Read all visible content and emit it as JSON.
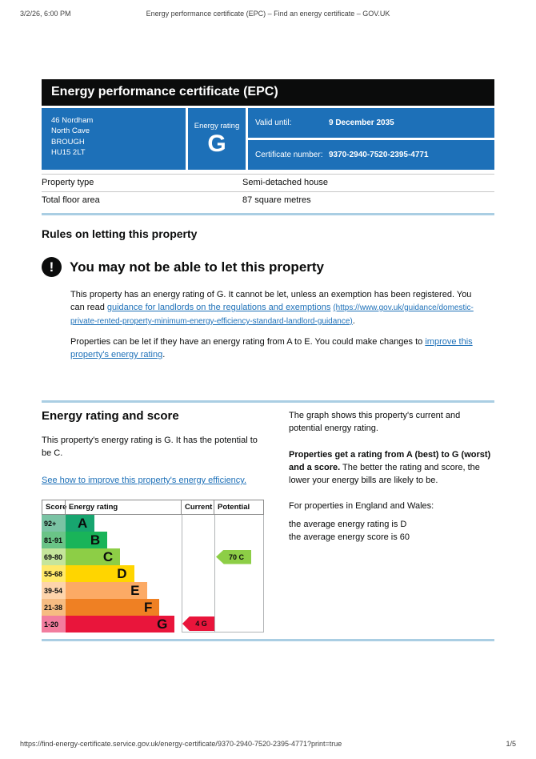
{
  "browser_chrome": {
    "datetime": "3/2/26, 6:00 PM",
    "page_title": "Energy performance certificate (EPC) – Find an energy certificate – GOV.UK",
    "footer_url": "https://find-energy-certificate.service.gov.uk/energy-certificate/9370-2940-7520-2395-4771?print=true",
    "page_number": "1/5"
  },
  "certificate": {
    "title": "Energy performance certificate (EPC)",
    "address_lines": [
      "46 Nordham",
      "North Cave",
      "BROUGH",
      "HU15 2LT"
    ],
    "energy_rating_label": "Energy rating",
    "energy_rating": "G",
    "valid_until_label": "Valid until:",
    "valid_until": "9 December 2035",
    "certificate_number_label": "Certificate number:",
    "certificate_number": "9370-2940-7520-2395-4771",
    "property": [
      {
        "label": "Property type",
        "value": "Semi-detached house"
      },
      {
        "label": "Total floor area",
        "value": "87 square metres"
      }
    ]
  },
  "rules_section": {
    "heading": "Rules on letting this property",
    "warning_icon": "!",
    "warning_heading": "You may not be able to let this property",
    "paragraph1_before": "This property has an energy rating of G. It cannot be let, unless an exemption has been registered. You can read ",
    "paragraph1_link": "guidance for landlords on the regulations and exemptions",
    "paragraph1_link_url_text": "(https://www.gov.uk/guidance/domestic-private-rented-property-minimum-energy-efficiency-standard-landlord-guidance)",
    "paragraph1_after": ".",
    "paragraph2_before": "Properties can be let if they have an energy rating from A to E. You could make changes to ",
    "paragraph2_link": "improve this property's energy rating",
    "paragraph2_after": "."
  },
  "rating_section": {
    "heading": "Energy rating and score",
    "intro": "This property's energy rating is G. It has the potential to be C.",
    "improve_link": "See how to improve this property's energy efficiency.",
    "right_column": {
      "paragraph1": "The graph shows this property's current and potential energy rating.",
      "paragraph2_bold": "Properties get a rating from A (best) to G (worst) and a score.",
      "paragraph2_rest": " The better the rating and score, the lower your energy bills are likely to be.",
      "paragraph3": "For properties in England and Wales:",
      "average_rating_line": "the average energy rating is D",
      "average_score_line": "the average energy score is 60"
    }
  },
  "chart_data": {
    "type": "bar",
    "title": "EPC energy rating bands with current and potential rating",
    "column_headers": [
      "Score",
      "Energy rating",
      "Current",
      "Potential"
    ],
    "bands": [
      {
        "score_range": "92+",
        "letter": "A",
        "bar_color": "#17a56f",
        "score_bg": "#7ac3a4",
        "bar_width_pct": 25
      },
      {
        "score_range": "81-91",
        "letter": "B",
        "bar_color": "#19b459",
        "score_bg": "#6ac487",
        "bar_width_pct": 36
      },
      {
        "score_range": "69-80",
        "letter": "C",
        "bar_color": "#8dce46",
        "score_bg": "#c5e59b",
        "bar_width_pct": 47
      },
      {
        "score_range": "55-68",
        "letter": "D",
        "bar_color": "#ffd500",
        "score_bg": "#ffe969",
        "bar_width_pct": 59
      },
      {
        "score_range": "39-54",
        "letter": "E",
        "bar_color": "#fcaa65",
        "score_bg": "#fdd4ac",
        "bar_width_pct": 70
      },
      {
        "score_range": "21-38",
        "letter": "F",
        "bar_color": "#ef8023",
        "score_bg": "#f6bc82",
        "bar_width_pct": 81
      },
      {
        "score_range": "1-20",
        "letter": "G",
        "bar_color": "#e9153b",
        "score_bg": "#f27d9e",
        "bar_width_pct": 94
      }
    ],
    "current": {
      "label": "4 G",
      "score": 4,
      "band": "G",
      "color": "#e9153b"
    },
    "potential": {
      "label": "70 C",
      "score": 70,
      "band": "C",
      "color": "#8dce46"
    }
  },
  "colors": {
    "govuk_blue": "#1d70b8",
    "title_bar": "#0b0c0c",
    "section_divider": "#aacee3",
    "link": "#1d70b8"
  }
}
